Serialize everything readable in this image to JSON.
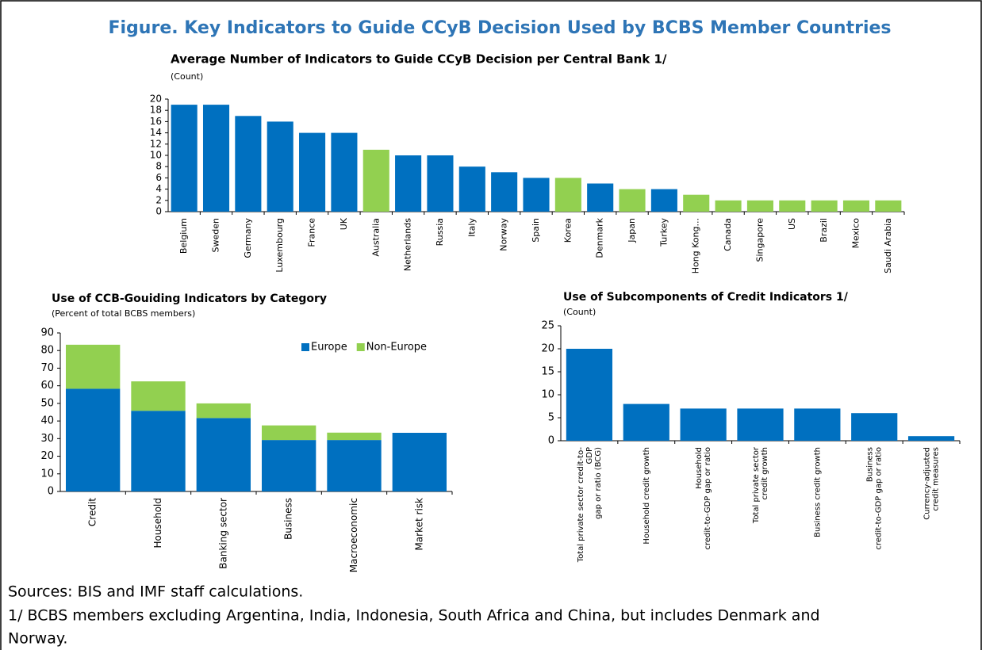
{
  "title": "Figure. Key Indicators to Guide CCyB Decision Used by BCBS Member Countries",
  "notes": [
    "Sources: BIS and IMF staff calculations.",
    "1/ BCBS members excluding Argentina, India, Indonesia, South Africa and China, but includes Denmark and",
    "Norway."
  ],
  "chart_data": [
    {
      "type": "bar",
      "title": "Average Number of Indicators to Guide CCyB Decision per Central Bank 1/",
      "subtitle": "(Count)",
      "categories": [
        "Belgium",
        "Sweden",
        "Germany",
        "Luxembourg",
        "France",
        "UK",
        "Australia",
        "Netherlands",
        "Russia",
        "Italy",
        "Norway",
        "Spain",
        "Korea",
        "Denmark",
        "Japan",
        "Turkey",
        "Hong Kong...",
        "Canada",
        "Singapore",
        "US",
        "Brazil",
        "Mexico",
        "Saudi Arabia"
      ],
      "values": [
        19,
        19,
        17,
        16,
        14,
        14,
        11,
        10,
        10,
        8,
        7,
        6,
        6,
        5,
        4,
        4,
        3,
        2,
        2,
        2,
        2,
        2,
        2
      ],
      "colors": [
        "#0070c0",
        "#0070c0",
        "#0070c0",
        "#0070c0",
        "#0070c0",
        "#0070c0",
        "#92d050",
        "#0070c0",
        "#0070c0",
        "#0070c0",
        "#0070c0",
        "#0070c0",
        "#92d050",
        "#0070c0",
        "#92d050",
        "#0070c0",
        "#92d050",
        "#92d050",
        "#92d050",
        "#92d050",
        "#92d050",
        "#92d050",
        "#92d050"
      ],
      "ylim": [
        0,
        20
      ],
      "yticks": [
        0,
        2,
        4,
        6,
        8,
        10,
        12,
        14,
        16,
        18,
        20
      ],
      "grid": false
    },
    {
      "type": "stacked_bar",
      "title": "Use of CCB-Gouiding Indicators by Category",
      "subtitle": "(Percent of total BCBS members)",
      "categories": [
        "Credit",
        "Household",
        "Banking sector",
        "Business",
        "Macroeconomic",
        "Market risk"
      ],
      "series": [
        {
          "name": "Europe",
          "color": "#0070c0",
          "values": [
            58.3,
            45.8,
            41.7,
            29.2,
            29.2,
            33.3
          ]
        },
        {
          "name": "Non-Europe",
          "color": "#92d050",
          "values": [
            25,
            16.7,
            8.3,
            8.3,
            4.2,
            0
          ]
        }
      ],
      "ylim": [
        0,
        90
      ],
      "yticks": [
        0,
        10,
        20,
        30,
        40,
        50,
        60,
        70,
        80,
        90
      ],
      "grid": false,
      "legend": "upper right"
    },
    {
      "type": "bar",
      "title": "Use of Subcomponents of Credit Indicators 1/",
      "subtitle": "(Count)",
      "categories": [
        [
          "Total private sector credit-to-",
          "GDP",
          "gap or ratio (BCG)"
        ],
        [
          "Household credit growth"
        ],
        [
          "Household",
          "credit-to-GDP gap or ratio"
        ],
        [
          "Total private sector",
          "credit growth"
        ],
        [
          "Business credit growth"
        ],
        [
          "Business",
          "credit-to-GDP gap or ratio"
        ],
        [
          "Currency-adjusted",
          "credit measures"
        ]
      ],
      "values": [
        20,
        8,
        7,
        7,
        7,
        6,
        1
      ],
      "color": "#0070c0",
      "ylim": [
        0,
        25
      ],
      "yticks": [
        0,
        5,
        10,
        15,
        20,
        25
      ],
      "grid": false
    }
  ]
}
